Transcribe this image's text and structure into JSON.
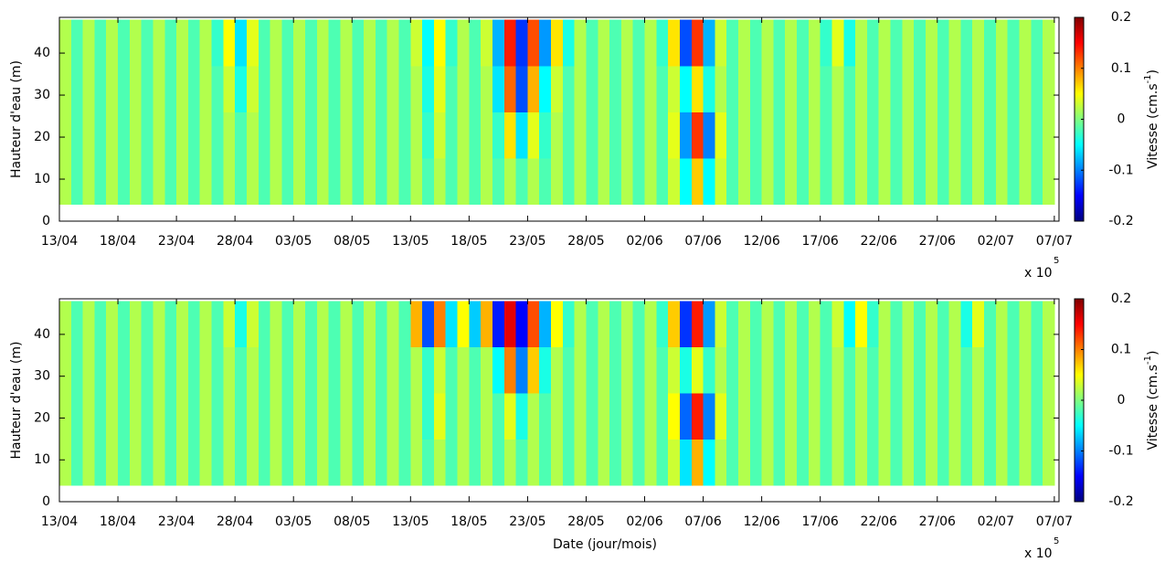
{
  "chart_data": [
    {
      "type": "heatmap",
      "ylabel": "Hauteur d'eau (m)",
      "x_exponent_label": [
        "x 10",
        "5"
      ],
      "colorbar_label": [
        "Vitesse (cm.s",
        "-1",
        ")"
      ],
      "xlim": [
        0,
        85.4
      ],
      "ylim": [
        0,
        48.5
      ],
      "xticks": [
        {
          "value": 0,
          "label": "13/04"
        },
        {
          "value": 5,
          "label": "18/04"
        },
        {
          "value": 10,
          "label": "23/04"
        },
        {
          "value": 15,
          "label": "28/04"
        },
        {
          "value": 20,
          "label": "03/05"
        },
        {
          "value": 25,
          "label": "08/05"
        },
        {
          "value": 30,
          "label": "13/05"
        },
        {
          "value": 35,
          "label": "18/05"
        },
        {
          "value": 40,
          "label": "23/05"
        },
        {
          "value": 45,
          "label": "28/05"
        },
        {
          "value": 50,
          "label": "02/06"
        },
        {
          "value": 55,
          "label": "07/06"
        },
        {
          "value": 60,
          "label": "12/06"
        },
        {
          "value": 65,
          "label": "17/06"
        },
        {
          "value": 70,
          "label": "22/06"
        },
        {
          "value": 75,
          "label": "27/06"
        },
        {
          "value": 80,
          "label": "02/07"
        },
        {
          "value": 85,
          "label": "07/07"
        }
      ],
      "yticks": [
        0,
        10,
        20,
        30,
        40
      ],
      "clim": [
        -0.2,
        0.2
      ],
      "cticks": [
        -0.2,
        -0.1,
        0,
        0.1,
        0.2
      ],
      "colormap": "jet",
      "x_bins": [
        0,
        1,
        2,
        3,
        4,
        5,
        6,
        7,
        8,
        9,
        10,
        11,
        12,
        13,
        14,
        15,
        16,
        17,
        18,
        19,
        20,
        21,
        22,
        23,
        24,
        25,
        26,
        27,
        28,
        29,
        30,
        31,
        32,
        33,
        34,
        35,
        36,
        37,
        38,
        39,
        40,
        41,
        42,
        43,
        44,
        45,
        46,
        47,
        48,
        49,
        50,
        51,
        52,
        53,
        54,
        55,
        56,
        57,
        58,
        59,
        60,
        61,
        62,
        63,
        64,
        65,
        66,
        67,
        68,
        69,
        70,
        71,
        72,
        73,
        74,
        75,
        76,
        77,
        78,
        79,
        80,
        81,
        82,
        83,
        84,
        85
      ],
      "y_bins": [
        4,
        15,
        26,
        37,
        48
      ],
      "z": [
        [
          0.02,
          -0.02,
          0.02,
          -0.02,
          0.02,
          -0.02,
          0.02,
          -0.02,
          0.02,
          -0.02,
          0.02,
          -0.02,
          0.02,
          -0.02,
          0.02,
          -0.02,
          0.02,
          -0.02,
          0.02,
          -0.02,
          0.02,
          -0.02,
          0.02,
          -0.02,
          0.02,
          -0.02,
          0.02,
          -0.02,
          0.02,
          -0.02,
          0.02,
          -0.02,
          0.02,
          -0.02,
          0.02,
          -0.02,
          0.02,
          -0.02,
          0.02,
          -0.02,
          0.02,
          -0.02,
          0.02,
          -0.02,
          0.02,
          -0.02,
          0.02,
          -0.02,
          0.02,
          -0.02,
          0.02,
          -0.02,
          0.03,
          -0.05,
          0.07,
          -0.05,
          0.03,
          -0.02,
          0.02,
          -0.02,
          0.02,
          -0.02,
          0.02,
          -0.02,
          0.02,
          -0.02,
          0.02,
          -0.02,
          0.02,
          -0.02,
          0.02,
          -0.02,
          0.02,
          -0.02,
          0.02,
          -0.02,
          0.02,
          -0.02,
          0.02,
          -0.02,
          0.02,
          -0.02,
          0.02,
          -0.02,
          0.02
        ],
        [
          0.02,
          -0.02,
          0.02,
          -0.02,
          0.02,
          -0.02,
          0.02,
          -0.02,
          0.02,
          -0.02,
          0.02,
          -0.02,
          0.02,
          -0.02,
          0.02,
          -0.02,
          0.02,
          -0.02,
          0.02,
          -0.02,
          0.02,
          -0.02,
          0.02,
          -0.02,
          0.02,
          -0.02,
          0.02,
          -0.02,
          0.02,
          -0.02,
          0.02,
          -0.03,
          0.03,
          -0.02,
          0.02,
          -0.02,
          0.02,
          -0.03,
          0.06,
          -0.06,
          0.04,
          -0.03,
          0.02,
          -0.02,
          0.02,
          -0.02,
          0.02,
          -0.02,
          0.02,
          -0.02,
          0.02,
          -0.02,
          0.04,
          -0.09,
          0.13,
          -0.1,
          0.04,
          -0.02,
          0.02,
          -0.02,
          0.02,
          -0.02,
          0.02,
          -0.02,
          0.02,
          -0.02,
          0.02,
          -0.02,
          0.02,
          -0.02,
          0.02,
          -0.02,
          0.02,
          -0.02,
          0.02,
          -0.02,
          0.02,
          -0.02,
          0.02,
          -0.02,
          0.02,
          -0.02,
          0.02,
          -0.02,
          0.02
        ],
        [
          0.02,
          -0.02,
          0.02,
          -0.02,
          0.02,
          -0.02,
          0.02,
          -0.02,
          0.02,
          -0.02,
          0.02,
          -0.02,
          0.02,
          -0.02,
          0.03,
          -0.04,
          0.03,
          -0.02,
          0.02,
          -0.02,
          0.02,
          -0.02,
          0.02,
          -0.02,
          0.02,
          -0.02,
          0.02,
          -0.02,
          0.02,
          -0.02,
          0.02,
          -0.04,
          0.04,
          -0.02,
          0.02,
          -0.02,
          0.02,
          -0.06,
          0.11,
          -0.12,
          0.08,
          -0.05,
          0.03,
          -0.02,
          0.02,
          -0.02,
          0.02,
          -0.02,
          0.02,
          -0.02,
          0.02,
          -0.02,
          0.03,
          -0.05,
          0.06,
          -0.04,
          0.02,
          -0.02,
          0.02,
          -0.02,
          0.02,
          -0.02,
          0.02,
          -0.02,
          0.02,
          -0.02,
          0.02,
          -0.02,
          0.02,
          -0.02,
          0.02,
          -0.02,
          0.02,
          -0.02,
          0.02,
          -0.02,
          0.02,
          -0.02,
          0.02,
          -0.02,
          0.02,
          -0.02,
          0.02,
          -0.02,
          0.02
        ],
        [
          0.02,
          -0.02,
          0.02,
          -0.02,
          0.02,
          -0.02,
          0.02,
          -0.02,
          0.02,
          -0.02,
          0.02,
          -0.02,
          0.02,
          -0.03,
          0.05,
          -0.06,
          0.04,
          -0.02,
          0.02,
          -0.02,
          0.02,
          -0.02,
          0.02,
          -0.02,
          0.02,
          -0.02,
          0.02,
          -0.02,
          0.02,
          -0.02,
          0.03,
          -0.05,
          0.05,
          -0.03,
          0.02,
          -0.02,
          0.03,
          -0.08,
          0.14,
          -0.13,
          0.12,
          -0.09,
          0.06,
          -0.04,
          0.02,
          -0.02,
          0.02,
          -0.02,
          0.02,
          -0.02,
          0.02,
          -0.03,
          0.06,
          -0.12,
          0.13,
          -0.08,
          0.03,
          -0.02,
          0.02,
          -0.02,
          0.02,
          -0.02,
          0.02,
          -0.02,
          0.02,
          -0.03,
          0.04,
          -0.04,
          0.02,
          -0.02,
          0.02,
          -0.02,
          0.02,
          -0.02,
          0.02,
          -0.02,
          0.02,
          -0.02,
          0.02,
          -0.02,
          0.02,
          -0.02,
          0.02,
          -0.02,
          0.02
        ]
      ]
    },
    {
      "type": "heatmap",
      "ylabel": "Hauteur d'eau (m)",
      "xlabel": "Date (jour/mois)",
      "x_exponent_label": [
        "x 10",
        "5"
      ],
      "colorbar_label": [
        "Vitesse (cm.s",
        "-1",
        ")"
      ],
      "xlim": [
        0,
        85.4
      ],
      "ylim": [
        0,
        48.5
      ],
      "xticks": [
        {
          "value": 0,
          "label": "13/04"
        },
        {
          "value": 5,
          "label": "18/04"
        },
        {
          "value": 10,
          "label": "23/04"
        },
        {
          "value": 15,
          "label": "28/04"
        },
        {
          "value": 20,
          "label": "03/05"
        },
        {
          "value": 25,
          "label": "08/05"
        },
        {
          "value": 30,
          "label": "13/05"
        },
        {
          "value": 35,
          "label": "18/05"
        },
        {
          "value": 40,
          "label": "23/05"
        },
        {
          "value": 45,
          "label": "28/05"
        },
        {
          "value": 50,
          "label": "02/06"
        },
        {
          "value": 55,
          "label": "07/06"
        },
        {
          "value": 60,
          "label": "12/06"
        },
        {
          "value": 65,
          "label": "17/06"
        },
        {
          "value": 70,
          "label": "22/06"
        },
        {
          "value": 75,
          "label": "27/06"
        },
        {
          "value": 80,
          "label": "02/07"
        },
        {
          "value": 85,
          "label": "07/07"
        }
      ],
      "yticks": [
        0,
        10,
        20,
        30,
        40
      ],
      "clim": [
        -0.2,
        0.2
      ],
      "cticks": [
        -0.2,
        -0.1,
        0,
        0.1,
        0.2
      ],
      "colormap": "jet",
      "x_bins": [
        0,
        1,
        2,
        3,
        4,
        5,
        6,
        7,
        8,
        9,
        10,
        11,
        12,
        13,
        14,
        15,
        16,
        17,
        18,
        19,
        20,
        21,
        22,
        23,
        24,
        25,
        26,
        27,
        28,
        29,
        30,
        31,
        32,
        33,
        34,
        35,
        36,
        37,
        38,
        39,
        40,
        41,
        42,
        43,
        44,
        45,
        46,
        47,
        48,
        49,
        50,
        51,
        52,
        53,
        54,
        55,
        56,
        57,
        58,
        59,
        60,
        61,
        62,
        63,
        64,
        65,
        66,
        67,
        68,
        69,
        70,
        71,
        72,
        73,
        74,
        75,
        76,
        77,
        78,
        79,
        80,
        81,
        82,
        83,
        84,
        85
      ],
      "y_bins": [
        4,
        15,
        26,
        37,
        48
      ],
      "z": [
        [
          0.02,
          -0.02,
          0.02,
          -0.02,
          0.02,
          -0.02,
          0.02,
          -0.02,
          0.02,
          -0.02,
          0.02,
          -0.02,
          0.02,
          -0.02,
          0.02,
          -0.02,
          0.02,
          -0.02,
          0.02,
          -0.02,
          0.02,
          -0.02,
          0.02,
          -0.02,
          0.02,
          -0.02,
          0.02,
          -0.02,
          0.02,
          -0.02,
          0.02,
          -0.02,
          0.02,
          -0.02,
          0.02,
          -0.02,
          0.02,
          -0.02,
          0.02,
          -0.02,
          0.02,
          -0.02,
          0.02,
          -0.02,
          0.02,
          -0.02,
          0.02,
          -0.02,
          0.02,
          -0.02,
          0.02,
          -0.02,
          0.03,
          -0.06,
          0.08,
          -0.05,
          0.02,
          -0.02,
          0.02,
          -0.02,
          0.02,
          -0.02,
          0.02,
          -0.02,
          0.02,
          -0.02,
          0.02,
          -0.02,
          0.02,
          -0.02,
          0.02,
          -0.02,
          0.02,
          -0.02,
          0.02,
          -0.02,
          0.02,
          -0.02,
          0.02,
          -0.02,
          0.02,
          -0.02,
          0.02,
          -0.02,
          0.02
        ],
        [
          0.02,
          -0.02,
          0.02,
          -0.02,
          0.02,
          -0.02,
          0.02,
          -0.02,
          0.02,
          -0.02,
          0.02,
          -0.02,
          0.02,
          -0.02,
          0.02,
          -0.02,
          0.02,
          -0.02,
          0.02,
          -0.02,
          0.02,
          -0.02,
          0.02,
          -0.02,
          0.02,
          -0.02,
          0.02,
          -0.02,
          0.02,
          -0.02,
          0.02,
          -0.03,
          0.04,
          -0.02,
          0.02,
          -0.02,
          0.02,
          -0.02,
          0.04,
          -0.04,
          0.02,
          -0.02,
          0.02,
          -0.02,
          0.02,
          -0.02,
          0.02,
          -0.02,
          0.02,
          -0.02,
          0.02,
          -0.02,
          0.05,
          -0.11,
          0.14,
          -0.1,
          0.04,
          -0.02,
          0.02,
          -0.02,
          0.02,
          -0.02,
          0.02,
          -0.02,
          0.02,
          -0.02,
          0.02,
          -0.02,
          0.02,
          -0.02,
          0.02,
          -0.02,
          0.02,
          -0.02,
          0.02,
          -0.02,
          0.02,
          -0.02,
          0.02,
          -0.02,
          0.02,
          -0.02,
          0.02,
          -0.02,
          0.02
        ],
        [
          0.02,
          -0.02,
          0.02,
          -0.02,
          0.02,
          -0.02,
          0.02,
          -0.02,
          0.02,
          -0.02,
          0.02,
          -0.02,
          0.02,
          -0.02,
          0.02,
          -0.02,
          0.02,
          -0.02,
          0.02,
          -0.02,
          0.02,
          -0.02,
          0.02,
          -0.02,
          0.02,
          -0.02,
          0.02,
          -0.02,
          0.02,
          -0.02,
          0.02,
          -0.03,
          0.03,
          -0.02,
          0.02,
          -0.02,
          0.02,
          -0.05,
          0.1,
          -0.1,
          0.07,
          -0.04,
          0.02,
          -0.02,
          0.02,
          -0.02,
          0.02,
          -0.02,
          0.02,
          -0.02,
          0.02,
          -0.02,
          0.03,
          -0.04,
          0.04,
          -0.03,
          0.02,
          -0.02,
          0.02,
          -0.02,
          0.02,
          -0.02,
          0.02,
          -0.02,
          0.02,
          -0.02,
          0.02,
          -0.02,
          0.02,
          -0.02,
          0.02,
          -0.02,
          0.02,
          -0.02,
          0.02,
          -0.02,
          0.02,
          -0.02,
          0.02,
          -0.02,
          0.02,
          -0.02,
          0.02,
          -0.02,
          0.02
        ],
        [
          0.02,
          -0.02,
          0.02,
          -0.02,
          0.02,
          -0.02,
          0.02,
          -0.02,
          0.02,
          -0.02,
          0.02,
          -0.02,
          0.02,
          -0.02,
          0.03,
          -0.04,
          0.03,
          -0.02,
          0.02,
          -0.02,
          0.02,
          -0.02,
          0.02,
          -0.02,
          0.02,
          -0.02,
          0.02,
          -0.02,
          0.02,
          -0.02,
          0.08,
          -0.12,
          0.1,
          -0.06,
          0.05,
          -0.07,
          0.08,
          -0.14,
          0.16,
          -0.15,
          0.12,
          -0.08,
          0.05,
          -0.03,
          0.02,
          -0.02,
          0.02,
          -0.02,
          0.02,
          -0.02,
          0.02,
          -0.03,
          0.07,
          -0.13,
          0.14,
          -0.09,
          0.03,
          -0.02,
          0.02,
          -0.02,
          0.02,
          -0.02,
          0.02,
          -0.02,
          0.02,
          -0.02,
          0.03,
          -0.05,
          0.05,
          -0.03,
          0.02,
          -0.02,
          0.02,
          -0.02,
          0.02,
          -0.02,
          0.02,
          -0.04,
          0.04,
          -0.02,
          0.02,
          -0.02,
          0.02,
          -0.02,
          0.02
        ]
      ]
    }
  ]
}
